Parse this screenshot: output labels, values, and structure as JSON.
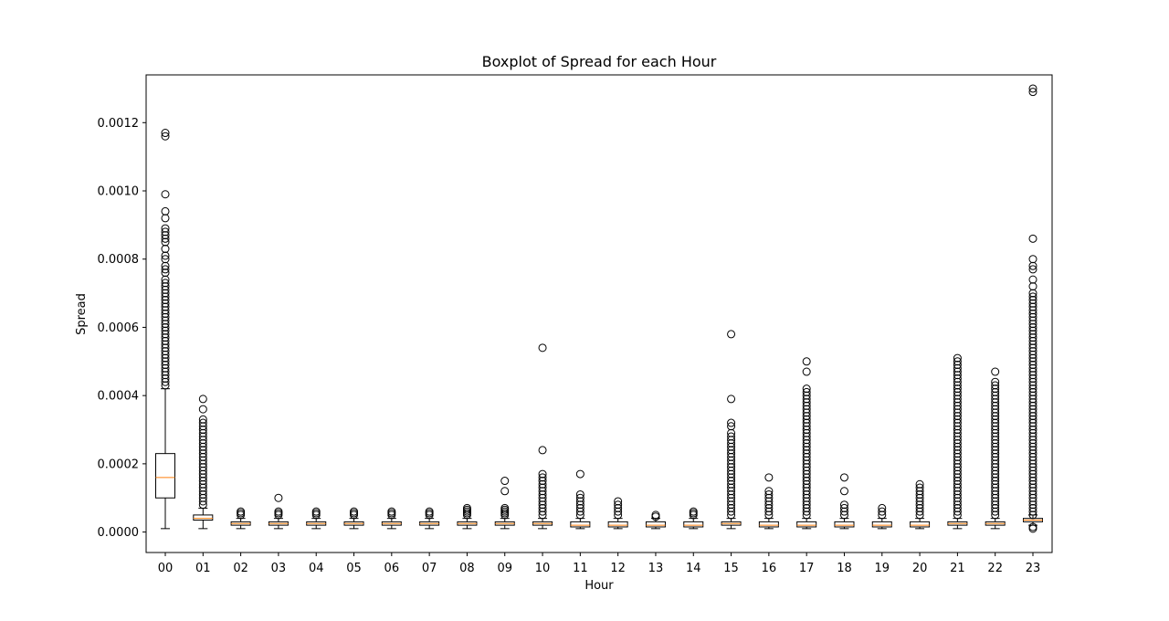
{
  "chart_data": {
    "type": "boxplot",
    "title": "Boxplot of Spread for each Hour",
    "xlabel": "Hour",
    "ylabel": "Spread",
    "ylim": [
      -6e-05,
      0.00134
    ],
    "yticks": [
      "0.0000",
      "0.0002",
      "0.0004",
      "0.0006",
      "0.0008",
      "0.0010",
      "0.0012"
    ],
    "categories": [
      "00",
      "01",
      "02",
      "03",
      "04",
      "05",
      "06",
      "07",
      "08",
      "09",
      "10",
      "11",
      "12",
      "13",
      "14",
      "15",
      "16",
      "17",
      "18",
      "19",
      "20",
      "21",
      "22",
      "23"
    ],
    "boxes": [
      {
        "whislo": 1e-05,
        "q1": 0.0001,
        "med": 0.00016,
        "q3": 0.00023,
        "whishi": 0.00042
      },
      {
        "whislo": 1e-05,
        "q1": 3.5e-05,
        "med": 4e-05,
        "q3": 5e-05,
        "whishi": 7e-05
      },
      {
        "whislo": 1e-05,
        "q1": 2e-05,
        "med": 2.5e-05,
        "q3": 3e-05,
        "whishi": 4e-05
      },
      {
        "whislo": 1e-05,
        "q1": 2e-05,
        "med": 2.5e-05,
        "q3": 3e-05,
        "whishi": 4e-05
      },
      {
        "whislo": 1e-05,
        "q1": 2e-05,
        "med": 2.5e-05,
        "q3": 3e-05,
        "whishi": 4e-05
      },
      {
        "whislo": 1e-05,
        "q1": 2e-05,
        "med": 2.5e-05,
        "q3": 3e-05,
        "whishi": 4e-05
      },
      {
        "whislo": 1e-05,
        "q1": 2e-05,
        "med": 2.5e-05,
        "q3": 3e-05,
        "whishi": 4e-05
      },
      {
        "whislo": 1e-05,
        "q1": 2e-05,
        "med": 2.5e-05,
        "q3": 3e-05,
        "whishi": 4e-05
      },
      {
        "whislo": 1e-05,
        "q1": 2e-05,
        "med": 2.5e-05,
        "q3": 3e-05,
        "whishi": 4e-05
      },
      {
        "whislo": 1e-05,
        "q1": 2e-05,
        "med": 2.5e-05,
        "q3": 3e-05,
        "whishi": 4e-05
      },
      {
        "whislo": 1e-05,
        "q1": 2e-05,
        "med": 2.5e-05,
        "q3": 3e-05,
        "whishi": 4e-05
      },
      {
        "whislo": 1e-05,
        "q1": 1.5e-05,
        "med": 2e-05,
        "q3": 3e-05,
        "whishi": 4e-05
      },
      {
        "whislo": 1e-05,
        "q1": 1.5e-05,
        "med": 2e-05,
        "q3": 3e-05,
        "whishi": 4e-05
      },
      {
        "whislo": 1e-05,
        "q1": 1.5e-05,
        "med": 2e-05,
        "q3": 3e-05,
        "whishi": 4e-05
      },
      {
        "whislo": 1e-05,
        "q1": 1.5e-05,
        "med": 2e-05,
        "q3": 3e-05,
        "whishi": 4e-05
      },
      {
        "whislo": 1e-05,
        "q1": 2e-05,
        "med": 2.5e-05,
        "q3": 3e-05,
        "whishi": 4e-05
      },
      {
        "whislo": 1e-05,
        "q1": 1.5e-05,
        "med": 2e-05,
        "q3": 3e-05,
        "whishi": 4e-05
      },
      {
        "whislo": 1e-05,
        "q1": 1.5e-05,
        "med": 2e-05,
        "q3": 3e-05,
        "whishi": 4e-05
      },
      {
        "whislo": 1e-05,
        "q1": 1.5e-05,
        "med": 2e-05,
        "q3": 3e-05,
        "whishi": 4e-05
      },
      {
        "whislo": 1e-05,
        "q1": 1.5e-05,
        "med": 2e-05,
        "q3": 3e-05,
        "whishi": 4e-05
      },
      {
        "whislo": 1e-05,
        "q1": 1.5e-05,
        "med": 2e-05,
        "q3": 3e-05,
        "whishi": 4e-05
      },
      {
        "whislo": 1e-05,
        "q1": 2e-05,
        "med": 2.5e-05,
        "q3": 3e-05,
        "whishi": 4e-05
      },
      {
        "whislo": 1e-05,
        "q1": 2e-05,
        "med": 2.5e-05,
        "q3": 3e-05,
        "whishi": 4e-05
      },
      {
        "whislo": 2e-05,
        "q1": 3e-05,
        "med": 3.5e-05,
        "q3": 4e-05,
        "whishi": 5e-05
      }
    ],
    "fliers": [
      [
        0.00117,
        0.00116,
        0.00099,
        0.00094,
        0.00092,
        0.00089,
        0.00088,
        0.00087,
        0.00086,
        0.00085,
        0.00083,
        0.00081,
        0.0008,
        0.00078,
        0.00077,
        0.00076,
        0.00074,
        0.00073,
        0.00072,
        0.00071,
        0.0007,
        0.00069,
        0.00068,
        0.00067,
        0.00066,
        0.00065,
        0.00064,
        0.00063,
        0.00062,
        0.00061,
        0.0006,
        0.00059,
        0.00058,
        0.00057,
        0.00056,
        0.00055,
        0.00054,
        0.00053,
        0.00052,
        0.00051,
        0.0005,
        0.00049,
        0.00048,
        0.00047,
        0.00046,
        0.00045,
        0.00044,
        0.00043
      ],
      [
        0.00039,
        0.00036,
        0.00033,
        0.00032,
        0.00031,
        0.0003,
        0.00029,
        0.00028,
        0.00027,
        0.00026,
        0.00025,
        0.00024,
        0.00023,
        0.00022,
        0.00021,
        0.0002,
        0.00019,
        0.00018,
        0.00017,
        0.00016,
        0.00015,
        0.00014,
        0.00013,
        0.00012,
        0.00011,
        0.0001,
        9e-05,
        8e-05
      ],
      [
        6e-05,
        5.5e-05,
        5e-05
      ],
      [
        0.0001,
        6e-05,
        5.5e-05,
        5e-05
      ],
      [
        6e-05,
        5.5e-05,
        5e-05
      ],
      [
        6e-05,
        5.5e-05,
        5e-05
      ],
      [
        6e-05,
        5.5e-05,
        5e-05
      ],
      [
        6e-05,
        5.5e-05,
        5e-05
      ],
      [
        7e-05,
        6.5e-05,
        6e-05,
        5.5e-05,
        5e-05
      ],
      [
        0.00015,
        0.00012,
        7e-05,
        6.5e-05,
        6e-05,
        5.5e-05,
        5e-05
      ],
      [
        0.00054,
        0.00024,
        0.00017,
        0.00016,
        0.00015,
        0.00014,
        0.00013,
        0.00012,
        0.00011,
        0.0001,
        9e-05,
        8e-05,
        7e-05,
        6e-05,
        5e-05
      ],
      [
        0.00017,
        0.00011,
        0.0001,
        9e-05,
        8e-05,
        7e-05,
        6e-05,
        5e-05
      ],
      [
        9e-05,
        8e-05,
        7e-05,
        6e-05,
        5e-05
      ],
      [
        5e-05,
        4.5e-05
      ],
      [
        6e-05,
        5.5e-05,
        5e-05
      ],
      [
        0.00058,
        0.00039,
        0.00032,
        0.00031,
        0.00029,
        0.00028,
        0.00027,
        0.00026,
        0.00025,
        0.00024,
        0.00023,
        0.00022,
        0.00021,
        0.0002,
        0.00019,
        0.00018,
        0.00017,
        0.00016,
        0.00015,
        0.00014,
        0.00013,
        0.00012,
        0.00011,
        0.0001,
        9e-05,
        8e-05,
        7e-05,
        6e-05,
        5e-05
      ],
      [
        0.00016,
        0.00012,
        0.00011,
        0.0001,
        9e-05,
        8e-05,
        7e-05,
        6e-05,
        5e-05
      ],
      [
        0.0005,
        0.00047,
        0.00042,
        0.00041,
        0.0004,
        0.00039,
        0.00038,
        0.00037,
        0.00036,
        0.00035,
        0.00034,
        0.00033,
        0.00032,
        0.00031,
        0.0003,
        0.00029,
        0.00028,
        0.00027,
        0.00026,
        0.00025,
        0.00024,
        0.00023,
        0.00022,
        0.00021,
        0.0002,
        0.00019,
        0.00018,
        0.00017,
        0.00016,
        0.00015,
        0.00014,
        0.00013,
        0.00012,
        0.00011,
        0.0001,
        9e-05,
        8e-05,
        7e-05,
        6e-05,
        5e-05
      ],
      [
        0.00016,
        0.00012,
        8e-05,
        7e-05,
        6e-05,
        5e-05
      ],
      [
        7e-05,
        6e-05,
        5e-05
      ],
      [
        0.00014,
        0.00013,
        0.00012,
        0.00011,
        0.0001,
        9e-05,
        8e-05,
        7e-05,
        6e-05,
        5e-05
      ],
      [
        0.00051,
        0.0005,
        0.00049,
        0.00048,
        0.00047,
        0.00046,
        0.00045,
        0.00044,
        0.00043,
        0.00042,
        0.00041,
        0.0004,
        0.00039,
        0.00038,
        0.00037,
        0.00036,
        0.00035,
        0.00034,
        0.00033,
        0.00032,
        0.00031,
        0.0003,
        0.00029,
        0.00028,
        0.00027,
        0.00026,
        0.00025,
        0.00024,
        0.00023,
        0.00022,
        0.00021,
        0.0002,
        0.00019,
        0.00018,
        0.00017,
        0.00016,
        0.00015,
        0.00014,
        0.00013,
        0.00012,
        0.00011,
        0.0001,
        9e-05,
        8e-05,
        7e-05,
        6e-05,
        5e-05
      ],
      [
        0.00047,
        0.00044,
        0.00043,
        0.00042,
        0.00041,
        0.0004,
        0.00039,
        0.00038,
        0.00037,
        0.00036,
        0.00035,
        0.00034,
        0.00033,
        0.00032,
        0.00031,
        0.0003,
        0.00029,
        0.00028,
        0.00027,
        0.00026,
        0.00025,
        0.00024,
        0.00023,
        0.00022,
        0.00021,
        0.0002,
        0.00019,
        0.00018,
        0.00017,
        0.00016,
        0.00015,
        0.00014,
        0.00013,
        0.00012,
        0.00011,
        0.0001,
        9e-05,
        8e-05,
        7e-05,
        6e-05,
        5e-05
      ],
      [
        0.0013,
        0.00129,
        0.00086,
        0.0008,
        0.00078,
        0.00077,
        0.00074,
        0.00072,
        0.0007,
        0.00069,
        0.00068,
        0.00067,
        0.00066,
        0.00065,
        0.00064,
        0.00063,
        0.00062,
        0.00061,
        0.0006,
        0.00059,
        0.00058,
        0.00057,
        0.00056,
        0.00055,
        0.00054,
        0.00053,
        0.00052,
        0.00051,
        0.0005,
        0.00049,
        0.00048,
        0.00047,
        0.00046,
        0.00045,
        0.00044,
        0.00043,
        0.00042,
        0.00041,
        0.0004,
        0.00039,
        0.00038,
        0.00037,
        0.00036,
        0.00035,
        0.00034,
        0.00033,
        0.00032,
        0.00031,
        0.0003,
        0.00029,
        0.00028,
        0.00027,
        0.00026,
        0.00025,
        0.00024,
        0.00023,
        0.00022,
        0.00021,
        0.0002,
        0.00019,
        0.00018,
        0.00017,
        0.00016,
        0.00015,
        0.00014,
        0.00013,
        0.00012,
        0.00011,
        0.0001,
        9e-05,
        8e-05,
        7e-05,
        6e-05,
        5e-05,
        1.5e-05,
        1e-05
      ]
    ],
    "colors": {
      "median": "#ff7f0e",
      "box": "#000000",
      "axes": "#000000"
    },
    "grid": false,
    "legend": "none"
  }
}
